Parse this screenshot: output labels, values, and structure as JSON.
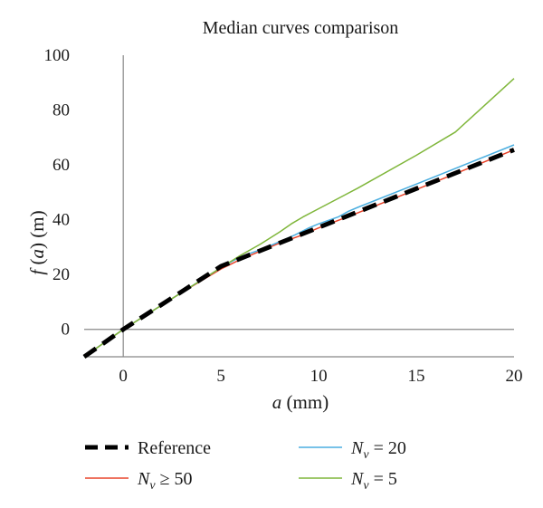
{
  "chart_data": {
    "type": "line",
    "title": "Median curves comparison",
    "xlabel": {
      "symbol": "a",
      "unit": "(mm)"
    },
    "ylabel": {
      "func": "f",
      "symbol": "a",
      "unit": "(m)"
    },
    "xlim": [
      -2,
      20
    ],
    "ylim": [
      -10,
      100
    ],
    "xticks": [
      0,
      5,
      10,
      15,
      20
    ],
    "yticks": [
      0,
      20,
      40,
      60,
      80,
      100
    ],
    "grid": false,
    "legend_position": "bottom",
    "series": [
      {
        "name": "Reference",
        "legend": {
          "main": "Reference",
          "sub": "",
          "rel": ""
        },
        "color": "#000000",
        "dashed": true,
        "points": [
          [
            -2,
            -10
          ],
          [
            0,
            0
          ],
          [
            5,
            23
          ],
          [
            20,
            65.5
          ]
        ]
      },
      {
        "name": "Nv ≥ 50",
        "legend": {
          "main": "N",
          "sub": "v",
          "rel": " ≥ 50"
        },
        "color": "#e8432a",
        "dashed": false,
        "points": [
          [
            -2,
            -10
          ],
          [
            0,
            0
          ],
          [
            3,
            13.5
          ],
          [
            5,
            22
          ],
          [
            6,
            25.5
          ],
          [
            7,
            28.5
          ],
          [
            8,
            31.5
          ],
          [
            9,
            34
          ],
          [
            10,
            37
          ],
          [
            12,
            42.5
          ],
          [
            15,
            51
          ],
          [
            20,
            65.5
          ]
        ]
      },
      {
        "name": "Nv = 20",
        "legend": {
          "main": "N",
          "sub": "v",
          "rel": " = 20"
        },
        "color": "#4aaee0",
        "dashed": false,
        "points": [
          [
            -2,
            -10
          ],
          [
            0,
            0
          ],
          [
            3,
            13.5
          ],
          [
            5,
            22.5
          ],
          [
            6,
            26.5
          ],
          [
            7,
            29
          ],
          [
            8,
            32
          ],
          [
            8.8,
            34.5
          ],
          [
            9.5,
            37
          ],
          [
            10,
            38.5
          ],
          [
            11,
            41
          ],
          [
            11.5,
            43
          ],
          [
            12,
            44.5
          ],
          [
            15,
            53
          ],
          [
            20,
            67.3
          ]
        ]
      },
      {
        "name": "Nv = 5",
        "legend": {
          "main": "N",
          "sub": "v",
          "rel": " = 5"
        },
        "color": "#7fb63a",
        "dashed": false,
        "points": [
          [
            -2,
            -10
          ],
          [
            0,
            0
          ],
          [
            3,
            13.5
          ],
          [
            5,
            22.5
          ],
          [
            6,
            27
          ],
          [
            7,
            31
          ],
          [
            8,
            35.5
          ],
          [
            8.6,
            38.5
          ],
          [
            9.2,
            41
          ],
          [
            10,
            44
          ],
          [
            12,
            51.5
          ],
          [
            15,
            63.5
          ],
          [
            17,
            72
          ],
          [
            20,
            91.5
          ]
        ]
      }
    ]
  }
}
